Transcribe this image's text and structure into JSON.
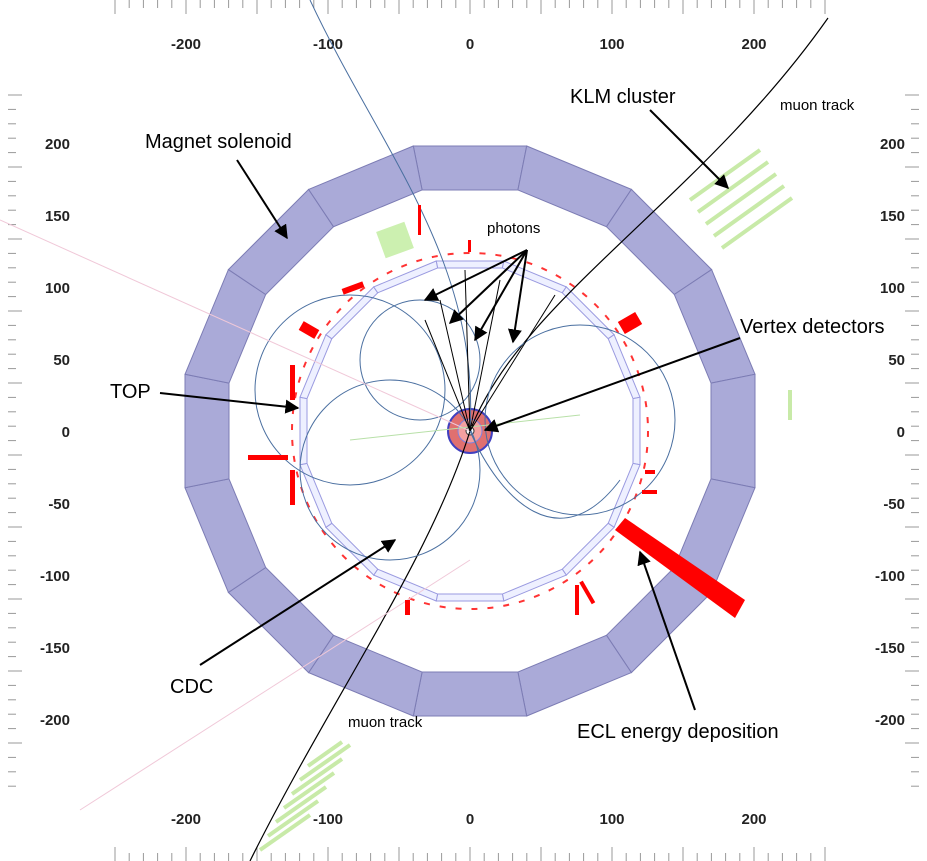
{
  "axes": {
    "x_ticks": [
      -200,
      -100,
      0,
      100,
      200
    ],
    "y_ticks": [
      200,
      150,
      100,
      50,
      0,
      -50,
      -100,
      -150,
      -200
    ]
  },
  "labels": {
    "magnet": "Magnet solenoid",
    "klm": "KLM cluster",
    "muon_top": "muon track",
    "photons": "photons",
    "vertex": "Vertex detectors",
    "top": "TOP",
    "cdc": "CDC",
    "muon_bottom": "muon track",
    "ecl": "ECL energy deposition"
  }
}
